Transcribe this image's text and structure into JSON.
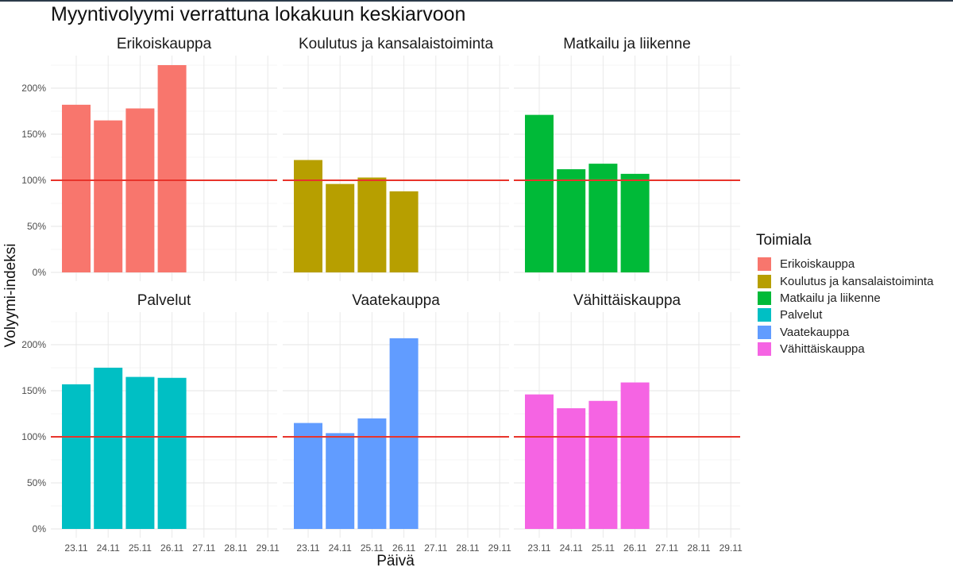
{
  "chart_data": {
    "type": "bar",
    "title": "Myyntivolyymi verrattuna lokakuun keskiarvoon",
    "xlabel": "Päivä",
    "ylabel": "Volyymi-indeksi",
    "categories": [
      "23.11",
      "24.11",
      "25.11",
      "26.11",
      "27.11",
      "28.11",
      "29.11"
    ],
    "ylim": [
      0,
      240
    ],
    "yticks": [
      0,
      50,
      100,
      150,
      200
    ],
    "ytick_labels": [
      "0%",
      "50%",
      "100%",
      "150%",
      "200%"
    ],
    "reference_line": {
      "value": 100,
      "color": "#e8342b"
    },
    "legend": {
      "title": "Toimiala",
      "position": "right"
    },
    "grid": true,
    "series": [
      {
        "name": "Erikoiskauppa",
        "color": "#f8766d",
        "values": [
          182,
          165,
          178,
          225,
          null,
          null,
          null
        ]
      },
      {
        "name": "Koulutus ja kansalaistoiminta",
        "color": "#b79f00",
        "values": [
          122,
          96,
          103,
          88,
          null,
          null,
          null
        ]
      },
      {
        "name": "Matkailu ja liikenne",
        "color": "#00ba38",
        "values": [
          171,
          112,
          118,
          107,
          null,
          null,
          null
        ]
      },
      {
        "name": "Palvelut",
        "color": "#00bfc4",
        "values": [
          157,
          175,
          165,
          164,
          null,
          null,
          null
        ]
      },
      {
        "name": "Vaatekauppa",
        "color": "#619cff",
        "values": [
          115,
          104,
          120,
          207,
          null,
          null,
          null
        ]
      },
      {
        "name": "Vähittäiskauppa",
        "color": "#f564e3",
        "values": [
          146,
          131,
          139,
          159,
          null,
          null,
          null
        ]
      }
    ]
  }
}
